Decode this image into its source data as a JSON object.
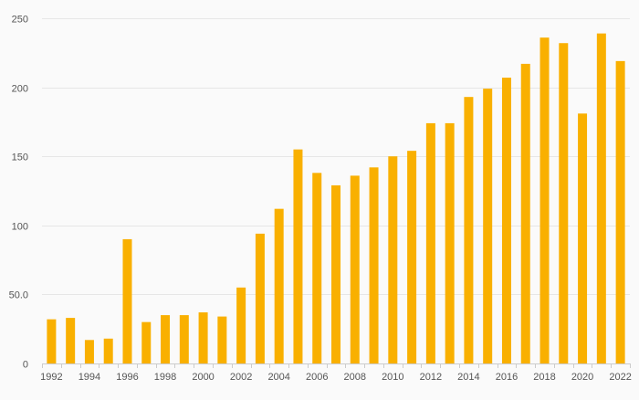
{
  "chart_data": {
    "type": "bar",
    "title": "",
    "xlabel": "",
    "ylabel": "",
    "categories": [
      "1992",
      "1993",
      "1994",
      "1995",
      "1996",
      "1997",
      "1998",
      "1999",
      "2000",
      "2001",
      "2002",
      "2003",
      "2004",
      "2005",
      "2006",
      "2007",
      "2008",
      "2009",
      "2010",
      "2011",
      "2012",
      "2013",
      "2014",
      "2015",
      "2016",
      "2017",
      "2018",
      "2019",
      "2020",
      "2021",
      "2022"
    ],
    "x_tick_labels": [
      "1992",
      "1994",
      "1996",
      "1998",
      "2000",
      "2002",
      "2004",
      "2006",
      "2008",
      "2010",
      "2012",
      "2014",
      "2016",
      "2018",
      "2020",
      "2022"
    ],
    "y_ticks": [
      0,
      50,
      100,
      150,
      200,
      250
    ],
    "y_tick_labels": [
      "0",
      "50.0",
      "100",
      "150",
      "200",
      "250"
    ],
    "ylim": [
      0,
      250
    ],
    "grid": true,
    "legend": "none",
    "series": [
      {
        "values": [
          32,
          33,
          17,
          18,
          90,
          30,
          35,
          35,
          37,
          34,
          55,
          94,
          112,
          155,
          138,
          129,
          136,
          142,
          150,
          154,
          174,
          174,
          193,
          199,
          207,
          217,
          236,
          232,
          181,
          239,
          219
        ],
        "color": "#f9b000"
      }
    ],
    "colors": {
      "bar": "#f9b000",
      "grid": "#e6e6e6",
      "axis": "#cccccc",
      "text": "#555555",
      "background": "#fafafa"
    }
  }
}
